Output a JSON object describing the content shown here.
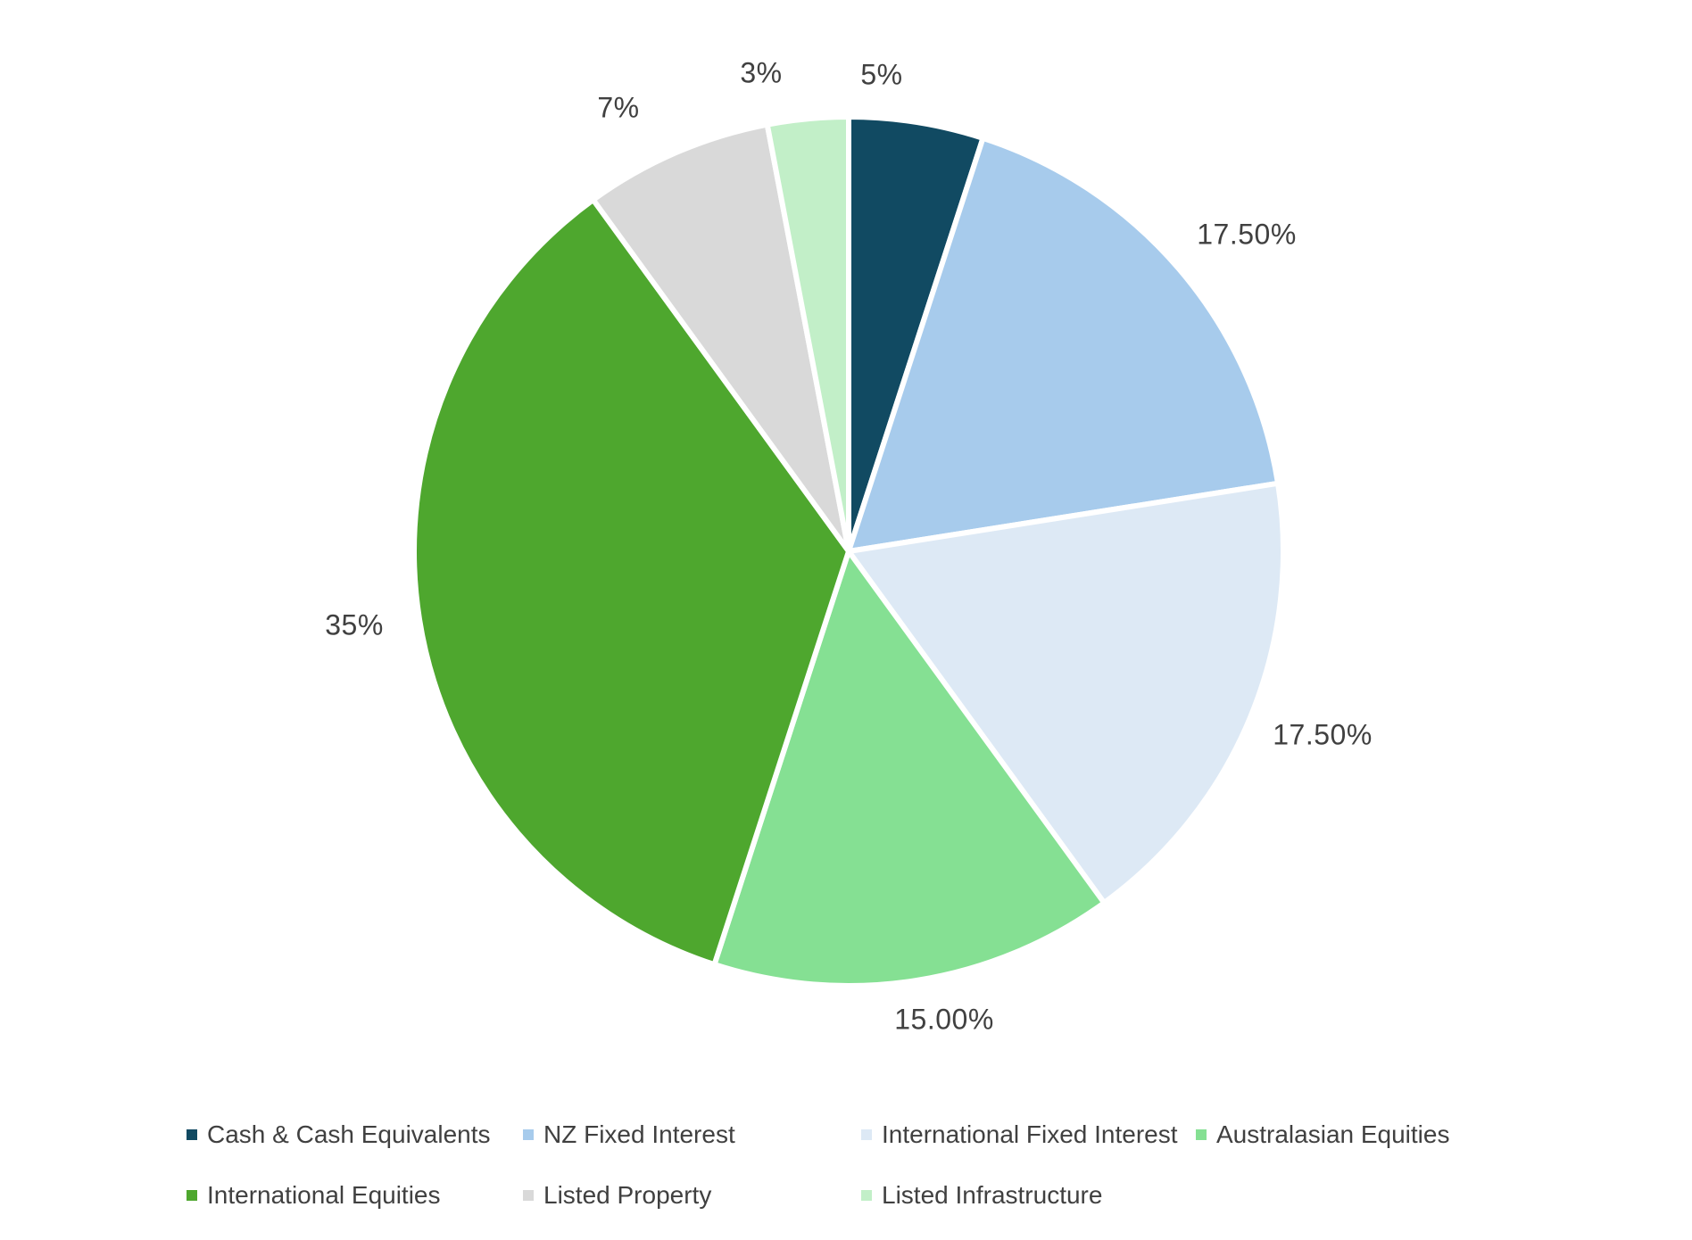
{
  "chart_data": {
    "type": "pie",
    "title": "",
    "background": "#FFFFFF",
    "label_color": "#404040",
    "start_angle_deg": 0,
    "direction": "clockwise",
    "legend_position": "bottom",
    "slices": [
      {
        "label": "Cash & Cash Equivalents",
        "value": 5,
        "display": "5%",
        "color": "#114A62"
      },
      {
        "label": "NZ Fixed Interest",
        "value": 17.5,
        "display": "17.50%",
        "color": "#A7CBEC"
      },
      {
        "label": "International Fixed Interest",
        "value": 17.5,
        "display": "17.50%",
        "color": "#DDE9F5"
      },
      {
        "label": "Australasian Equities",
        "value": 15,
        "display": "15.00%",
        "color": "#85E093"
      },
      {
        "label": "International Equities",
        "value": 35,
        "display": "35%",
        "color": "#4EA72E"
      },
      {
        "label": "Listed Property",
        "value": 7,
        "display": "7%",
        "color": "#D9D9D9"
      },
      {
        "label": "Listed Infrastructure",
        "value": 3,
        "display": "3%",
        "color": "#C2EFC8"
      }
    ]
  }
}
